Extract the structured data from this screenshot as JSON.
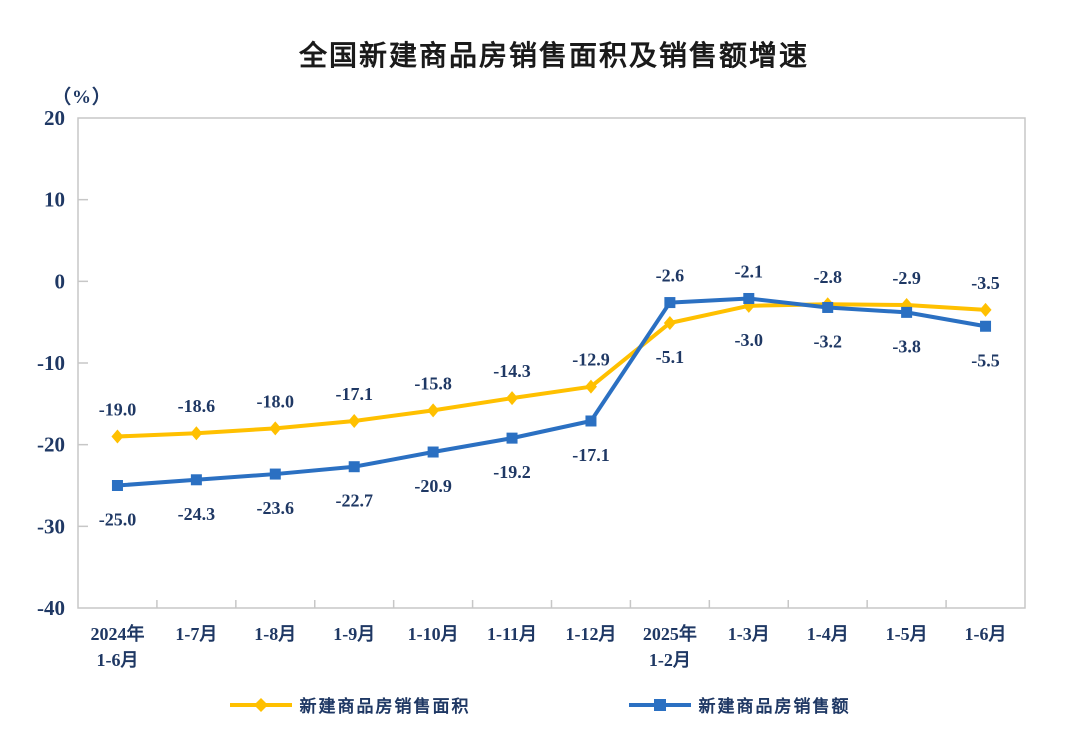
{
  "chart_data": {
    "type": "line",
    "title": "全国新建商品房销售面积及销售额增速",
    "ylabel": "（%）",
    "xlabel": "",
    "ylim": [
      -40,
      20
    ],
    "yticks": [
      20,
      10,
      0,
      -10,
      -20,
      -30,
      -40
    ],
    "grid": false,
    "legend_position": "bottom",
    "categories": [
      [
        "2024年",
        "1-6月"
      ],
      [
        "1-7月"
      ],
      [
        "1-8月"
      ],
      [
        "1-9月"
      ],
      [
        "1-10月"
      ],
      [
        "1-11月"
      ],
      [
        "1-12月"
      ],
      [
        "2025年",
        "1-2月"
      ],
      [
        "1-3月"
      ],
      [
        "1-4月"
      ],
      [
        "1-5月"
      ],
      [
        "1-6月"
      ]
    ],
    "series": [
      {
        "name": "新建商品房销售面积",
        "marker": "diamond",
        "color": "#FFC000",
        "values": [
          -19.0,
          -18.6,
          -18.0,
          -17.1,
          -15.8,
          -14.3,
          -12.9,
          -5.1,
          -3.0,
          -2.8,
          -2.9,
          -3.5
        ]
      },
      {
        "name": "新建商品房销售额",
        "marker": "square",
        "color": "#2B70C2",
        "values": [
          -25.0,
          -24.3,
          -23.6,
          -22.7,
          -20.9,
          -19.2,
          -17.1,
          -2.6,
          -2.1,
          -3.2,
          -3.8,
          -5.5
        ]
      }
    ]
  },
  "colors": {
    "axis_text": "#1f3864",
    "title_text": "#1a1a1a",
    "frame": "#c7c7c7"
  }
}
